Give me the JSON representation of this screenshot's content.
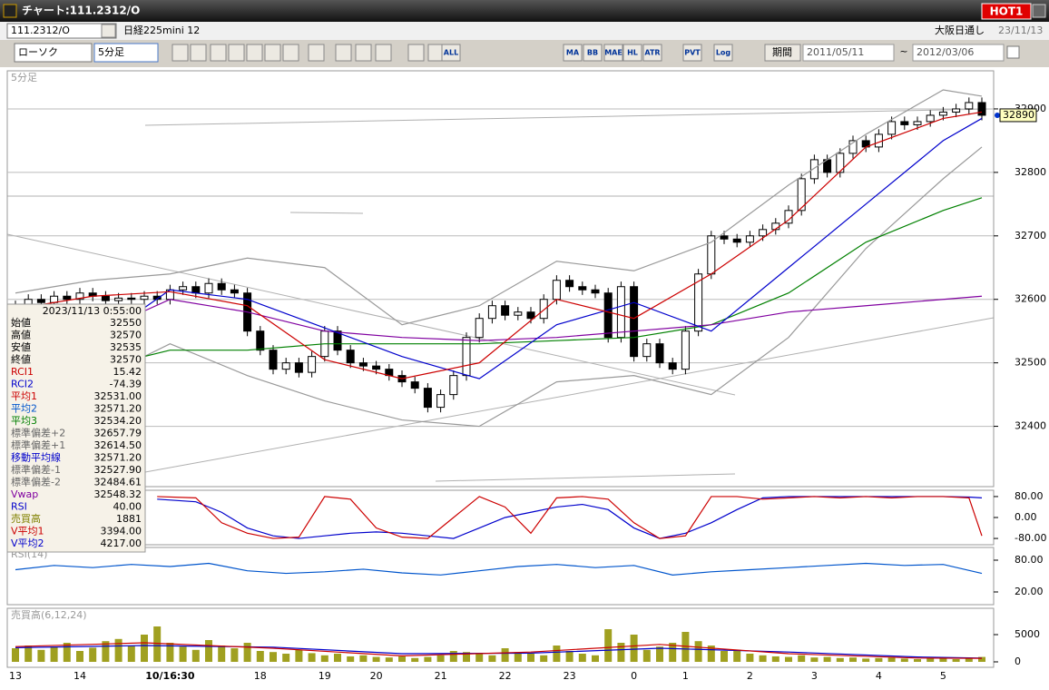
{
  "ui": {
    "window_title": "チャート:111.2312/O",
    "hot": "HOT1",
    "symbol": "111.2312/O",
    "symbol_name": "日経225mini 12",
    "market": "大阪日通し",
    "date": "23/11/13",
    "chart_style": "ローソク",
    "interval": "5分足",
    "period_button": "期間",
    "date_from": "2011/05/11",
    "range_sep": "~",
    "date_to": "2012/03/06",
    "toolbar_labels": [
      "ALL",
      "MA",
      "BB",
      "MAE",
      "HL",
      "ATR",
      "PVT",
      "Log"
    ]
  },
  "info_box": {
    "date": "2023/11/13 0:55:00",
    "rows": [
      {
        "label": "始値",
        "value": "32550",
        "color": "#000000"
      },
      {
        "label": "高値",
        "value": "32570",
        "color": "#000000"
      },
      {
        "label": "安値",
        "value": "32535",
        "color": "#000000"
      },
      {
        "label": "終値",
        "value": "32570",
        "color": "#000000"
      },
      {
        "label": "RCI1",
        "value": "15.42",
        "color": "#cc0000"
      },
      {
        "label": "RCI2",
        "value": "-74.39",
        "color": "#0000cc"
      },
      {
        "label": "平均1",
        "value": "32531.00",
        "color": "#cc0000"
      },
      {
        "label": "平均2",
        "value": "32571.20",
        "color": "#0055cc"
      },
      {
        "label": "平均3",
        "value": "32534.20",
        "color": "#008000"
      },
      {
        "label": "標準偏差+2",
        "value": "32657.79",
        "color": "#666666"
      },
      {
        "label": "標準偏差+1",
        "value": "32614.50",
        "color": "#666666"
      },
      {
        "label": "移動平均線",
        "value": "32571.20",
        "color": "#0000cc"
      },
      {
        "label": "標準偏差-1",
        "value": "32527.90",
        "color": "#666666"
      },
      {
        "label": "標準偏差-2",
        "value": "32484.61",
        "color": "#666666"
      },
      {
        "label": "Vwap",
        "value": "32548.32",
        "color": "#8000a0"
      },
      {
        "label": "RSI",
        "value": "40.00",
        "color": "#0000cc"
      },
      {
        "label": "売買高",
        "value": "1881",
        "color": "#808000"
      },
      {
        "label": "V平均1",
        "value": "3394.00",
        "color": "#cc0000"
      },
      {
        "label": "V平均2",
        "value": "4217.00",
        "color": "#0000cc"
      }
    ]
  },
  "chart_data": [
    {
      "type": "candlestick",
      "title": "5分足",
      "up_color": "#ffffff",
      "down_color": "#000000",
      "open": [
        32585,
        32590,
        32600,
        32595,
        32605,
        32600,
        32610,
        32605,
        32598,
        32602,
        32600,
        32605,
        32600,
        32615,
        32620,
        32610,
        32625,
        32615,
        32610,
        32550,
        32520,
        32490,
        32500,
        32485,
        32510,
        32550,
        32520,
        32500,
        32495,
        32490,
        32480,
        32470,
        32460,
        32430,
        32450,
        32480,
        32540,
        32570,
        32590,
        32575,
        32580,
        32570,
        32600,
        32630,
        32620,
        32615,
        32610,
        32540,
        32620,
        32510,
        32530,
        32500,
        32490,
        32550,
        32640,
        32700,
        32695,
        32690,
        32700,
        32710,
        32720,
        32740,
        32790,
        32820,
        32800,
        32830,
        32850,
        32840,
        32860,
        32880,
        32875,
        32880,
        32890,
        32895,
        32900,
        32910
      ],
      "high": [
        32598,
        32608,
        32608,
        32613,
        32613,
        32618,
        32618,
        32613,
        32610,
        32610,
        32613,
        32613,
        32623,
        32628,
        32628,
        32633,
        32633,
        32623,
        32618,
        32558,
        32528,
        32508,
        32508,
        32518,
        32558,
        32558,
        32528,
        32508,
        32503,
        32498,
        32488,
        32478,
        32468,
        32458,
        32488,
        32548,
        32578,
        32598,
        32598,
        32588,
        32588,
        32608,
        32638,
        32638,
        32628,
        32623,
        32618,
        32628,
        32628,
        32538,
        32538,
        32508,
        32558,
        32648,
        32708,
        32708,
        32703,
        32708,
        32718,
        32728,
        32748,
        32798,
        32828,
        32828,
        32838,
        32858,
        32858,
        32868,
        32888,
        32888,
        32888,
        32898,
        32903,
        32908,
        32918,
        32918
      ],
      "low": [
        32577,
        32582,
        32587,
        32587,
        32592,
        32592,
        32597,
        32590,
        32590,
        32592,
        32592,
        32592,
        32592,
        32607,
        32602,
        32602,
        32607,
        32602,
        32542,
        32512,
        32482,
        32482,
        32477,
        32477,
        32502,
        32512,
        32492,
        32487,
        32482,
        32472,
        32462,
        32452,
        32422,
        32422,
        32442,
        32472,
        32532,
        32562,
        32567,
        32567,
        32562,
        32562,
        32592,
        32612,
        32607,
        32602,
        32532,
        32532,
        32502,
        32502,
        32492,
        32482,
        32482,
        32542,
        32632,
        32687,
        32682,
        32682,
        32692,
        32702,
        32712,
        32732,
        32782,
        32792,
        32792,
        32822,
        32832,
        32832,
        32852,
        32867,
        32867,
        32872,
        32882,
        32887,
        32892,
        32882
      ],
      "close": [
        32590,
        32600,
        32595,
        32605,
        32600,
        32610,
        32605,
        32598,
        32602,
        32600,
        32605,
        32600,
        32615,
        32620,
        32610,
        32625,
        32615,
        32610,
        32550,
        32520,
        32490,
        32500,
        32485,
        32510,
        32550,
        32520,
        32500,
        32495,
        32490,
        32480,
        32470,
        32460,
        32430,
        32450,
        32480,
        32540,
        32570,
        32590,
        32575,
        32580,
        32570,
        32600,
        32630,
        32620,
        32615,
        32610,
        32540,
        32620,
        32510,
        32530,
        32500,
        32490,
        32550,
        32640,
        32700,
        32695,
        32690,
        32700,
        32710,
        32720,
        32740,
        32790,
        32820,
        32800,
        32830,
        32850,
        32840,
        32860,
        32880,
        32875,
        32880,
        32890,
        32895,
        32900,
        32910,
        32890
      ],
      "overlays": [
        {
          "color": "#999999",
          "x": [
            0,
            6,
            12,
            18,
            24,
            30,
            36,
            42,
            48,
            54,
            60,
            66,
            72,
            75
          ],
          "values": [
            32610,
            32630,
            32640,
            32665,
            32650,
            32560,
            32590,
            32660,
            32645,
            32690,
            32780,
            32860,
            32930,
            32920
          ]
        },
        {
          "color": "#999999",
          "x": [
            0,
            6,
            12,
            18,
            24,
            30,
            36,
            42,
            48,
            54,
            60,
            66,
            72,
            75
          ],
          "values": [
            32480,
            32470,
            32530,
            32480,
            32440,
            32410,
            32400,
            32470,
            32480,
            32450,
            32540,
            32680,
            32790,
            32840
          ]
        },
        {
          "color": "#008000",
          "x": [
            0,
            6,
            12,
            18,
            24,
            30,
            36,
            42,
            48,
            54,
            60,
            66,
            72,
            75
          ],
          "values": [
            32450,
            32490,
            32520,
            32520,
            32530,
            32530,
            32530,
            32535,
            32540,
            32560,
            32610,
            32690,
            32740,
            32760
          ]
        },
        {
          "color": "#8000a0",
          "x": [
            0,
            6,
            12,
            18,
            24,
            30,
            36,
            42,
            48,
            54,
            60,
            66,
            72,
            75
          ],
          "values": [
            32540,
            32545,
            32600,
            32580,
            32550,
            32540,
            32535,
            32540,
            32550,
            32560,
            32580,
            32590,
            32600,
            32605
          ]
        },
        {
          "color": "#0000cc",
          "x": [
            0,
            6,
            12,
            18,
            24,
            30,
            36,
            42,
            48,
            54,
            60,
            66,
            72,
            75
          ],
          "values": [
            32535,
            32530,
            32615,
            32600,
            32555,
            32510,
            32475,
            32560,
            32595,
            32550,
            32650,
            32750,
            32850,
            32885
          ]
        },
        {
          "color": "#cc0000",
          "x": [
            0,
            6,
            12,
            18,
            24,
            30,
            36,
            42,
            48,
            54,
            60,
            66,
            72,
            75
          ],
          "values": [
            32585,
            32605,
            32612,
            32590,
            32505,
            32475,
            32500,
            32600,
            32570,
            32640,
            32725,
            32840,
            32885,
            32895
          ]
        }
      ],
      "ylim": [
        32305,
        32960
      ],
      "yticks": [
        32400,
        32500,
        32600,
        32700,
        32800,
        32900
      ],
      "grid": true
    },
    {
      "type": "line",
      "series": [
        {
          "color": "#0000cc",
          "x": [
            11,
            14,
            16,
            18,
            20,
            22,
            24,
            26,
            28,
            30,
            32,
            34,
            36,
            38,
            40,
            42,
            44,
            46,
            48,
            50,
            52,
            54,
            56,
            58,
            60,
            62,
            64,
            66,
            68,
            70,
            72,
            74,
            75
          ],
          "values": [
            70,
            60,
            20,
            -40,
            -70,
            -80,
            -70,
            -60,
            -55,
            -60,
            -70,
            -80,
            -40,
            0,
            20,
            40,
            50,
            30,
            -40,
            -80,
            -60,
            -20,
            30,
            75,
            80,
            80,
            80,
            80,
            80,
            80,
            80,
            78,
            75
          ]
        },
        {
          "color": "#cc0000",
          "x": [
            11,
            14,
            16,
            18,
            20,
            22,
            24,
            26,
            28,
            30,
            32,
            34,
            36,
            38,
            40,
            42,
            44,
            46,
            48,
            50,
            52,
            54,
            56,
            58,
            60,
            62,
            64,
            66,
            68,
            70,
            72,
            74,
            75
          ],
          "values": [
            80,
            75,
            -20,
            -60,
            -80,
            -75,
            80,
            70,
            -40,
            -75,
            -80,
            0,
            80,
            40,
            -60,
            75,
            80,
            70,
            -20,
            -80,
            -70,
            80,
            80,
            70,
            75,
            80,
            75,
            80,
            75,
            80,
            80,
            75,
            -70
          ]
        }
      ],
      "ylim": [
        -104,
        104
      ],
      "yticks": [
        {
          "value": 80,
          "label": "80.00"
        },
        {
          "value": 0,
          "label": "0.00"
        },
        {
          "value": -80,
          "label": "-80.00"
        }
      ],
      "grid": false
    },
    {
      "type": "line",
      "title": "RSI(14)",
      "series": [
        {
          "color": "#0055cc",
          "x": [
            0,
            3,
            6,
            9,
            12,
            15,
            18,
            21,
            24,
            27,
            30,
            33,
            36,
            39,
            42,
            45,
            48,
            51,
            54,
            57,
            60,
            63,
            66,
            69,
            72,
            75
          ],
          "values": [
            62,
            70,
            66,
            72,
            68,
            74,
            60,
            55,
            58,
            63,
            56,
            52,
            60,
            68,
            72,
            66,
            70,
            52,
            58,
            62,
            66,
            70,
            74,
            70,
            72,
            55
          ]
        }
      ],
      "ylim": [
        -4,
        104
      ],
      "yticks": [
        {
          "value": 80,
          "label": "80.00"
        },
        {
          "value": 20,
          "label": "20.00"
        }
      ],
      "grid": false
    },
    {
      "type": "bar",
      "title": "売買高(6,12,24)",
      "color": "#a0a020",
      "categories": [
        "13",
        null,
        null,
        null,
        null,
        "14",
        null,
        null,
        null,
        null,
        null,
        null,
        "10/16:30",
        null,
        null,
        null,
        null,
        null,
        null,
        "18",
        null,
        null,
        null,
        null,
        "19",
        null,
        null,
        null,
        "20",
        null,
        null,
        null,
        null,
        "21",
        null,
        null,
        null,
        null,
        "22",
        null,
        null,
        null,
        null,
        "23",
        null,
        null,
        null,
        null,
        "0",
        null,
        null,
        null,
        "1",
        null,
        null,
        null,
        null,
        "2",
        null,
        null,
        null,
        null,
        "3",
        null,
        null,
        null,
        null,
        "4",
        null,
        null,
        null,
        null,
        "5",
        null,
        null,
        null
      ],
      "values": [
        2500,
        3000,
        2200,
        2800,
        3500,
        2000,
        2600,
        3800,
        4200,
        3000,
        5000,
        6500,
        3500,
        2800,
        2200,
        4000,
        3000,
        2500,
        3500,
        2000,
        1800,
        1500,
        2200,
        1600,
        1200,
        1500,
        1000,
        1200,
        900,
        800,
        1000,
        700,
        900,
        1200,
        2000,
        1800,
        1500,
        1200,
        2500,
        1800,
        1500,
        1200,
        3000,
        2000,
        1500,
        1200,
        6000,
        3500,
        5000,
        2200,
        2800,
        3500,
        5500,
        3800,
        3000,
        2000,
        2200,
        1500,
        1200,
        1000,
        900,
        1200,
        800,
        900,
        700,
        800,
        600,
        700,
        800,
        600,
        500,
        700,
        600,
        500,
        700,
        900
      ],
      "overlays": [
        {
          "color": "#0000cc",
          "x": [
            0,
            10,
            20,
            30,
            40,
            50,
            60,
            70,
            75
          ],
          "values": [
            2600,
            3000,
            2700,
            1500,
            1600,
            2500,
            1800,
            900,
            700
          ]
        },
        {
          "color": "#cc0000",
          "x": [
            0,
            10,
            20,
            30,
            40,
            50,
            60,
            70,
            75
          ],
          "values": [
            2800,
            3500,
            2500,
            1100,
            1800,
            3200,
            1500,
            700,
            650
          ]
        }
      ],
      "ylim": [
        -1000,
        9833
      ],
      "yticks": [
        5000,
        0
      ],
      "grid": false
    }
  ]
}
